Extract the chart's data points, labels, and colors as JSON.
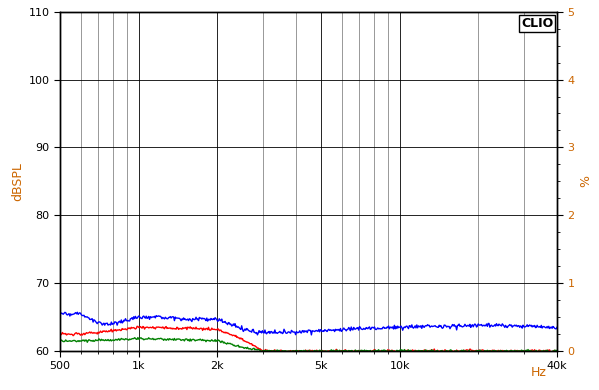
{
  "ylabel_left": "dBSPL",
  "ylabel_right": "%",
  "xlabel": "Hz",
  "xlim": [
    500,
    40000
  ],
  "ylim_left": [
    60,
    110
  ],
  "ylim_right": [
    0,
    5
  ],
  "yticks_left": [
    60,
    70,
    80,
    90,
    100,
    110
  ],
  "yticks_right": [
    0,
    1,
    2,
    3,
    4,
    5
  ],
  "xtick_vals": [
    500,
    1000,
    2000,
    5000,
    10000,
    40000
  ],
  "xticklabels": [
    "500",
    "1k",
    "2k",
    "5k",
    "10k",
    "40k"
  ],
  "bg_color": "#ffffff",
  "grid_color": "#000000",
  "axis_label_color": "#cc6600",
  "tick_label_color": "#000000",
  "clio_label": "CLIO",
  "blue_color": "#0000ff",
  "red_color": "#ff0000",
  "green_color": "#008000",
  "line_width": 1.0
}
